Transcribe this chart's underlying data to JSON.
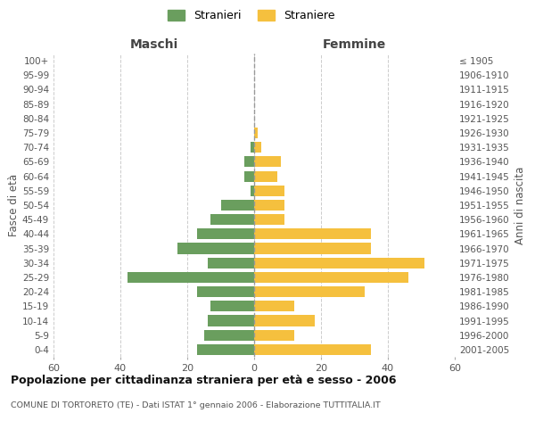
{
  "age_groups": [
    "0-4",
    "5-9",
    "10-14",
    "15-19",
    "20-24",
    "25-29",
    "30-34",
    "35-39",
    "40-44",
    "45-49",
    "50-54",
    "55-59",
    "60-64",
    "65-69",
    "70-74",
    "75-79",
    "80-84",
    "85-89",
    "90-94",
    "95-99",
    "100+"
  ],
  "birth_years": [
    "2001-2005",
    "1996-2000",
    "1991-1995",
    "1986-1990",
    "1981-1985",
    "1976-1980",
    "1971-1975",
    "1966-1970",
    "1961-1965",
    "1956-1960",
    "1951-1955",
    "1946-1950",
    "1941-1945",
    "1936-1940",
    "1931-1935",
    "1926-1930",
    "1921-1925",
    "1916-1920",
    "1911-1915",
    "1906-1910",
    "≤ 1905"
  ],
  "maschi": [
    17,
    15,
    14,
    13,
    17,
    38,
    14,
    23,
    17,
    13,
    10,
    1,
    3,
    3,
    1,
    0,
    0,
    0,
    0,
    0,
    0
  ],
  "femmine": [
    35,
    12,
    18,
    12,
    33,
    46,
    51,
    35,
    35,
    9,
    9,
    9,
    7,
    8,
    2,
    1,
    0,
    0,
    0,
    0,
    0
  ],
  "color_maschi": "#6a9e5e",
  "color_femmine": "#f5c03e",
  "title": "Popolazione per cittadinanza straniera per età e sesso - 2006",
  "subtitle": "COMUNE DI TORTORETO (TE) - Dati ISTAT 1° gennaio 2006 - Elaborazione TUTTITALIA.IT",
  "xlabel_left": "Maschi",
  "xlabel_right": "Femmine",
  "ylabel_left": "Fasce di età",
  "ylabel_right": "Anni di nascita",
  "legend_maschi": "Stranieri",
  "legend_femmine": "Straniere",
  "xlim": 60,
  "background_color": "#ffffff",
  "grid_color": "#cccccc"
}
